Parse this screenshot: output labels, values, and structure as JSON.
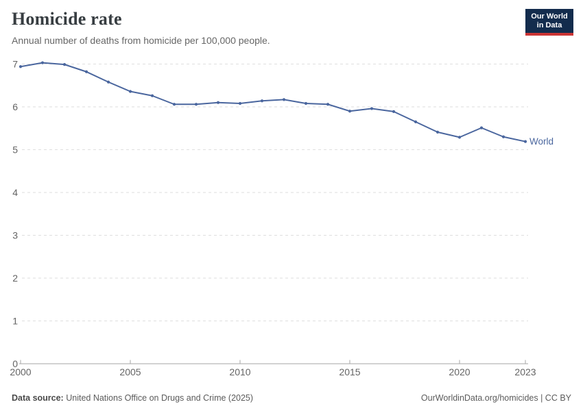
{
  "header": {
    "title": "Homicide rate",
    "subtitle": "Annual number of deaths from homicide per 100,000 people."
  },
  "logo": {
    "line1": "Our World",
    "line2": "in Data",
    "bg_color": "#132c4d",
    "bar_color": "#cb3434"
  },
  "footer": {
    "datasource_label": "Data source:",
    "datasource": "United Nations Office on Drugs and Crime (2025)",
    "link": "OurWorldinData.org/homicides | CC BY"
  },
  "colors": {
    "series_blue": "#4a669e",
    "gridline": "#dedede",
    "axis": "#a6a6a6",
    "tick_label": "#646464"
  },
  "chart_data": {
    "type": "line",
    "title": "Homicide rate",
    "subtitle": "Annual number of deaths from homicide per 100,000 people.",
    "xlabel": "",
    "ylabel": "",
    "xlim": [
      2000,
      2023
    ],
    "ylim": [
      0,
      7
    ],
    "x_ticks": [
      2000,
      2005,
      2010,
      2015,
      2020,
      2023
    ],
    "y_ticks": [
      0,
      1,
      2,
      3,
      4,
      5,
      6,
      7
    ],
    "grid": "horizontal-dashed",
    "legend_position": "end-of-line-label",
    "series": [
      {
        "name": "World",
        "color": "#4a669e",
        "x": [
          2000,
          2001,
          2002,
          2003,
          2004,
          2005,
          2006,
          2007,
          2008,
          2009,
          2010,
          2011,
          2012,
          2013,
          2014,
          2015,
          2016,
          2017,
          2018,
          2019,
          2020,
          2021,
          2022,
          2023
        ],
        "values": [
          6.94,
          7.03,
          6.99,
          6.82,
          6.58,
          6.36,
          6.26,
          6.06,
          6.06,
          6.1,
          6.08,
          6.14,
          6.17,
          6.08,
          6.06,
          5.9,
          5.96,
          5.89,
          5.65,
          5.41,
          5.29,
          5.51,
          5.3,
          5.19
        ]
      }
    ]
  }
}
